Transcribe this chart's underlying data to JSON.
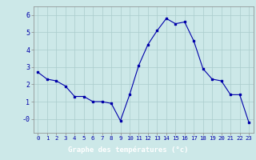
{
  "hours": [
    0,
    1,
    2,
    3,
    4,
    5,
    6,
    7,
    8,
    9,
    10,
    11,
    12,
    13,
    14,
    15,
    16,
    17,
    18,
    19,
    20,
    21,
    22,
    23
  ],
  "temperatures": [
    2.7,
    2.3,
    2.2,
    1.9,
    1.3,
    1.3,
    1.0,
    1.0,
    0.9,
    -0.1,
    1.4,
    3.1,
    4.3,
    5.1,
    5.8,
    5.5,
    5.6,
    4.5,
    2.9,
    2.3,
    2.2,
    1.4,
    1.4,
    -0.2
  ],
  "line_color": "#0000aa",
  "marker": "s",
  "marker_size": 2,
  "bg_color": "#cce8e8",
  "grid_color": "#aacccc",
  "xlabel": "Graphe des températures (°c)",
  "xlabel_color": "#ffffff",
  "tick_color": "#0000aa",
  "ylim": [
    -0.8,
    6.5
  ],
  "ytick_labels": [
    "-0",
    "1",
    "2",
    "3",
    "4",
    "5",
    "6"
  ],
  "ytick_vals": [
    0,
    1,
    2,
    3,
    4,
    5,
    6
  ],
  "bottom_bar_color": "#0000aa",
  "spine_color": "#888888"
}
